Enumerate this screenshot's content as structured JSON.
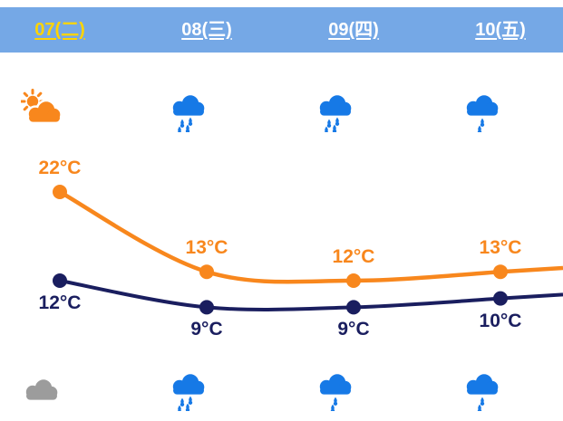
{
  "colors": {
    "header_bg": "#75A8E6",
    "active_date": "#FFD400",
    "date_text": "#FFFFFF",
    "high_line": "#F8871D",
    "low_line": "#1A1E5F",
    "rain_blue": "#1679E6",
    "cloud_gray": "#9C9C9C"
  },
  "header": {
    "days": [
      {
        "label": "07(二)",
        "active": true
      },
      {
        "label": "08(三)",
        "active": false
      },
      {
        "label": "09(四)",
        "active": false
      },
      {
        "label": "10(五)",
        "active": false
      }
    ]
  },
  "day_icons": [
    {
      "icon": "sun-behind-cloud"
    },
    {
      "icon": "rain"
    },
    {
      "icon": "rain"
    },
    {
      "icon": "light-rain"
    }
  ],
  "night_icons": [
    {
      "icon": "cloudy"
    },
    {
      "icon": "rain"
    },
    {
      "icon": "light-rain"
    },
    {
      "icon": "light-rain"
    }
  ],
  "chart_data": {
    "type": "line",
    "categories": [
      "07(二)",
      "08(三)",
      "09(四)",
      "10(五)"
    ],
    "series": [
      {
        "name": "high",
        "color": "#F8871D",
        "values": [
          22,
          13,
          12,
          13
        ]
      },
      {
        "name": "low",
        "color": "#1A1E5F",
        "values": [
          12,
          9,
          9,
          10
        ]
      }
    ],
    "unit": "°C",
    "grid": false,
    "legend": "none",
    "lines_continue_past_right_edge": true
  }
}
